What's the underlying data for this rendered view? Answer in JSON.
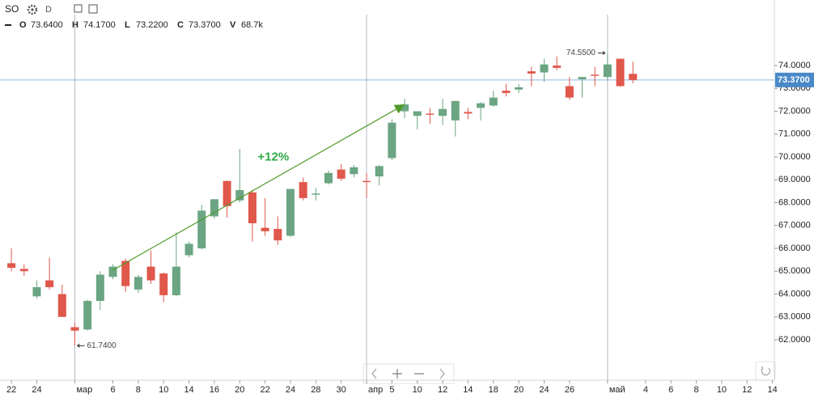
{
  "chart_data": {
    "type": "candlestick",
    "symbol": "SO",
    "interval": "D",
    "legend_values": [
      {
        "key": "O",
        "value": 73.64,
        "label": "73.6400"
      },
      {
        "key": "H",
        "value": 74.17,
        "label": "74.1700"
      },
      {
        "key": "L",
        "value": 73.22,
        "label": "73.2200"
      },
      {
        "key": "C",
        "value": 73.37,
        "label": "73.3700"
      },
      {
        "key": "V",
        "value": 68700,
        "label": "68.7k"
      }
    ],
    "up_color": "#6ba583",
    "down_color": "#e0574b",
    "open": [
      65.35,
      65.1,
      63.9,
      64.6,
      64.0,
      62.55,
      62.45,
      63.7,
      64.75,
      65.45,
      64.2,
      65.2,
      64.9,
      63.95,
      65.7,
      66.0,
      67.4,
      68.95,
      68.1,
      68.45,
      66.9,
      66.85,
      66.55,
      68.9,
      68.35,
      68.85,
      69.45,
      69.25,
      68.95,
      69.15,
      69.95,
      72.0,
      71.8,
      71.9,
      71.8,
      71.6,
      71.97,
      72.15,
      72.25,
      72.9,
      72.95,
      73.75,
      73.7,
      74.0,
      73.1,
      73.4,
      73.6,
      73.5,
      74.3,
      73.64
    ],
    "high": [
      66.0,
      65.3,
      64.6,
      65.6,
      64.4,
      62.75,
      63.75,
      65.0,
      65.3,
      65.55,
      64.85,
      65.9,
      64.95,
      66.7,
      66.3,
      67.9,
      68.15,
      68.95,
      70.35,
      68.55,
      68.2,
      67.4,
      68.6,
      69.1,
      68.65,
      69.4,
      69.7,
      69.65,
      69.3,
      69.65,
      71.65,
      72.55,
      72.0,
      72.15,
      72.55,
      72.45,
      72.15,
      72.4,
      72.9,
      73.2,
      73.2,
      73.95,
      74.3,
      74.4,
      73.5,
      73.5,
      73.95,
      74.55,
      74.3,
      74.17
    ],
    "low": [
      65.0,
      64.8,
      63.8,
      64.2,
      63.0,
      61.74,
      62.4,
      63.3,
      64.65,
      64.1,
      64.05,
      64.45,
      63.65,
      63.9,
      65.6,
      65.95,
      67.3,
      67.35,
      68.0,
      66.3,
      66.55,
      66.15,
      66.5,
      68.1,
      68.1,
      68.8,
      68.95,
      69.1,
      68.2,
      68.75,
      69.85,
      71.7,
      71.2,
      71.45,
      71.4,
      70.9,
      71.65,
      71.6,
      72.2,
      72.65,
      72.8,
      73.1,
      73.3,
      73.8,
      72.5,
      72.6,
      73.1,
      73.35,
      73.08,
      73.22
    ],
    "close": [
      65.15,
      65.0,
      64.3,
      64.3,
      63.0,
      62.4,
      63.7,
      64.85,
      65.2,
      64.35,
      64.75,
      64.6,
      63.95,
      65.2,
      66.2,
      67.65,
      68.15,
      67.85,
      68.55,
      67.1,
      66.75,
      66.35,
      68.6,
      68.2,
      68.4,
      69.3,
      69.05,
      69.55,
      68.9,
      69.6,
      71.5,
      72.3,
      72.0,
      71.85,
      72.1,
      72.45,
      71.9,
      72.35,
      72.6,
      72.8,
      73.05,
      73.65,
      74.05,
      73.9,
      72.6,
      73.5,
      73.55,
      74.05,
      73.1,
      73.37
    ],
    "low_marker": {
      "value": 61.74,
      "label": "61.7400"
    },
    "high_marker": {
      "value": 74.55,
      "label": "74.5500"
    },
    "last_price": {
      "value": 73.37,
      "label": "73.3700",
      "color": "#4a89c8"
    },
    "trendline": {
      "color": "#4f9a2a",
      "label": "+12%",
      "label_color": "#2eaa47",
      "start": {
        "x": 8,
        "y": 65.05
      },
      "end": {
        "x": 31,
        "y": 72.3
      }
    },
    "xlim": [
      -0.9,
      60.15
    ],
    "xticks": [
      {
        "value": 0,
        "label": "22"
      },
      {
        "value": 2,
        "label": "24"
      },
      {
        "value": 5,
        "label": "мар"
      },
      {
        "value": 8,
        "label": "6"
      },
      {
        "value": 10,
        "label": "8"
      },
      {
        "value": 12,
        "label": "10"
      },
      {
        "value": 14,
        "label": "14"
      },
      {
        "value": 16,
        "label": "16"
      },
      {
        "value": 18,
        "label": "20"
      },
      {
        "value": 20,
        "label": "22"
      },
      {
        "value": 22,
        "label": "24"
      },
      {
        "value": 24,
        "label": "28"
      },
      {
        "value": 26,
        "label": "30"
      },
      {
        "value": 28,
        "label": "апр"
      },
      {
        "value": 30,
        "label": "5"
      },
      {
        "value": 32,
        "label": "10"
      },
      {
        "value": 34,
        "label": "12"
      },
      {
        "value": 36,
        "label": "14"
      },
      {
        "value": 38,
        "label": "18"
      },
      {
        "value": 40,
        "label": "20"
      },
      {
        "value": 42,
        "label": "24"
      },
      {
        "value": 44,
        "label": "26"
      },
      {
        "value": 47,
        "label": "май"
      },
      {
        "value": 50,
        "label": "4"
      },
      {
        "value": 52,
        "label": "6"
      },
      {
        "value": 54,
        "label": "8"
      },
      {
        "value": 56,
        "label": "10"
      },
      {
        "value": 58,
        "label": "12"
      },
      {
        "value": 60,
        "label": "14"
      }
    ],
    "ylim": [
      60.23,
      76.87
    ],
    "yticks": [
      {
        "value": 62,
        "label": "62.0000"
      },
      {
        "value": 63,
        "label": "63.0000"
      },
      {
        "value": 64,
        "label": "64.0000"
      },
      {
        "value": 65,
        "label": "65.0000"
      },
      {
        "value": 66,
        "label": "66.0000"
      },
      {
        "value": 67,
        "label": "67.0000"
      },
      {
        "value": 68,
        "label": "68.0000"
      },
      {
        "value": 69,
        "label": "69.0000"
      },
      {
        "value": 70,
        "label": "70.0000"
      },
      {
        "value": 71,
        "label": "71.0000"
      },
      {
        "value": 72,
        "label": "72.0000"
      },
      {
        "value": 73,
        "label": "73.0000"
      },
      {
        "value": 74,
        "label": "74.0000"
      }
    ]
  }
}
